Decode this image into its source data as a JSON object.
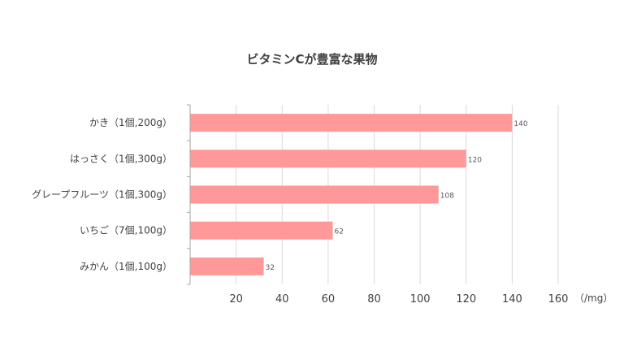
{
  "chart_data": {
    "type": "bar",
    "orientation": "horizontal",
    "title": "ビタミンCが豊富な果物",
    "categories": [
      "かき（1個,200g）",
      "はっさく（1個,300g）",
      "グレープフルーツ（1個,300g）",
      "いちご（7個,100g）",
      "みかん（1個,100g）"
    ],
    "series": [
      {
        "values": [
          140,
          120,
          108,
          62,
          32
        ]
      }
    ],
    "xlim": [
      0,
      160
    ],
    "xticks": [
      20,
      40,
      60,
      80,
      100,
      120,
      140,
      160
    ],
    "xunit": "（/mg）",
    "grid": true,
    "data_labels": true,
    "colors": {
      "bar": "#ff9999",
      "grid": "#d9d9d9",
      "axis": "#a6a6a6",
      "text": "#404040",
      "value_label": "#595959"
    }
  }
}
